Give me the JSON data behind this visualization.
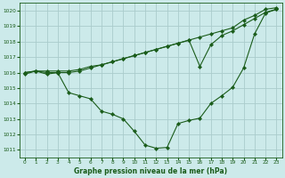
{
  "xlabel": "Graphe pression niveau de la mer (hPa)",
  "background_color": "#cceaea",
  "grid_color": "#aacccc",
  "line_color": "#1a5c1a",
  "ylim": [
    1010.5,
    1020.5
  ],
  "xlim": [
    -0.5,
    23.5
  ],
  "yticks": [
    1011,
    1012,
    1013,
    1014,
    1015,
    1016,
    1017,
    1018,
    1019,
    1020
  ],
  "xticks": [
    0,
    1,
    2,
    3,
    4,
    5,
    6,
    7,
    8,
    9,
    10,
    11,
    12,
    13,
    14,
    15,
    16,
    17,
    18,
    19,
    20,
    21,
    22,
    23
  ],
  "series": [
    {
      "x": [
        0,
        1,
        2,
        3,
        4,
        5,
        6,
        7,
        8,
        9,
        10,
        11,
        12,
        13,
        14,
        15,
        16,
        17,
        18,
        19,
        20,
        21,
        22,
        23
      ],
      "y": [
        1016.0,
        1016.1,
        1016.1,
        1016.1,
        1016.1,
        1016.2,
        1016.4,
        1016.5,
        1016.7,
        1016.9,
        1017.1,
        1017.3,
        1017.5,
        1017.7,
        1017.9,
        1018.1,
        1018.3,
        1018.5,
        1018.7,
        1018.9,
        1019.4,
        1019.7,
        1020.1,
        1020.2
      ]
    },
    {
      "x": [
        0,
        1,
        2,
        3,
        4,
        5,
        6,
        7,
        8,
        9,
        10,
        11,
        12,
        13,
        14,
        15,
        16,
        17,
        18,
        19,
        20,
        21,
        22,
        23
      ],
      "y": [
        1015.9,
        1016.1,
        1016.0,
        1016.0,
        1016.0,
        1016.1,
        1016.3,
        1016.5,
        1016.7,
        1016.9,
        1017.1,
        1017.3,
        1017.5,
        1017.7,
        1017.9,
        1018.1,
        1016.4,
        1017.8,
        1018.4,
        1018.7,
        1019.1,
        1019.5,
        1019.9,
        1020.1
      ]
    },
    {
      "x": [
        0,
        1,
        2,
        3,
        4,
        5,
        6,
        7,
        8,
        9,
        10,
        11,
        12,
        13,
        14,
        15,
        16,
        17,
        18,
        19,
        20,
        21,
        22,
        23
      ],
      "y": [
        1016.0,
        1016.1,
        1015.9,
        1016.0,
        1014.7,
        1014.5,
        1014.3,
        1013.5,
        1013.3,
        1013.0,
        1012.2,
        1011.3,
        1011.1,
        1011.15,
        1012.7,
        1012.9,
        1013.05,
        1014.0,
        1014.5,
        1015.05,
        1016.3,
        1018.5,
        1019.85,
        1020.1
      ]
    }
  ]
}
